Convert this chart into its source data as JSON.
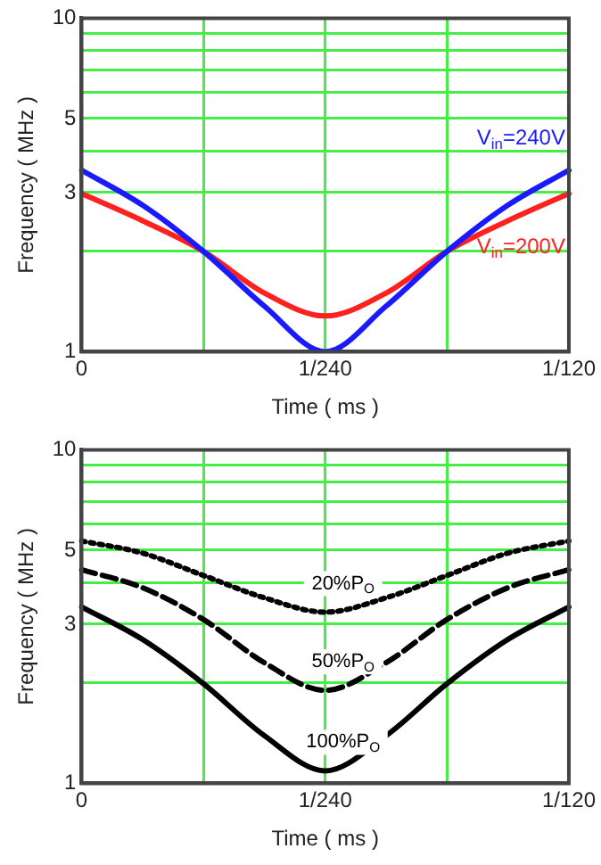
{
  "chart_data": [
    {
      "type": "line",
      "xlabel": "Time ( ms )",
      "ylabel": "Frequency ( MHz )",
      "log": "y",
      "grid": true,
      "legend": false,
      "categories": [
        "0",
        null,
        null,
        null,
        "1/240",
        null,
        null,
        null,
        "1/120"
      ],
      "ylim": [
        1,
        10
      ],
      "yticks": [
        1,
        {
          "value": 2,
          "label": null
        },
        3,
        {
          "value": 4,
          "label": null
        },
        5,
        {
          "value": 6,
          "label": null
        },
        {
          "value": 7,
          "label": null
        },
        {
          "value": 8,
          "label": null
        },
        {
          "value": 9,
          "label": null
        },
        10
      ],
      "series": [
        {
          "name": "V$_{in}$=240V",
          "color": "#1a1aff",
          "values": [
            3.5,
            2.75,
            2.0,
            1.37,
            1.0,
            1.37,
            2.0,
            2.75,
            3.5
          ]
        },
        {
          "name": "V$_{in}$=200V",
          "color": "#ff2020",
          "values": [
            2.98,
            2.47,
            2.0,
            1.5,
            1.28,
            1.5,
            2.0,
            2.47,
            2.98
          ]
        }
      ]
    },
    {
      "type": "line",
      "xlabel": "Time ( ms )",
      "ylabel": "Frequency ( MHz )",
      "log": "y",
      "grid": true,
      "legend": false,
      "categories": [
        "0",
        null,
        null,
        null,
        "1/240",
        null,
        null,
        null,
        "1/120"
      ],
      "ylim": [
        1,
        10
      ],
      "yticks": [
        1,
        {
          "value": 2,
          "label": null
        },
        3,
        {
          "value": 4,
          "label": null
        },
        5,
        {
          "value": 6,
          "label": null
        },
        {
          "value": 7,
          "label": null
        },
        {
          "value": 8,
          "label": null
        },
        {
          "value": 9,
          "label": null
        },
        10
      ],
      "series": [
        {
          "name": "20%P$_{O}$",
          "color": "#000000",
          "line_style": "dotted",
          "values": [
            5.33,
            4.9,
            4.2,
            3.6,
            3.26,
            3.6,
            4.2,
            4.9,
            5.33
          ]
        },
        {
          "name": "50%P$_{O}$",
          "color": "#000000",
          "line_style": "dashed",
          "values": [
            4.37,
            3.86,
            3.1,
            2.3,
            1.9,
            2.3,
            3.1,
            3.86,
            4.37
          ]
        },
        {
          "name": "100%P$_{O}$",
          "color": "#000000",
          "line_style": "solid",
          "values": [
            3.38,
            2.7,
            1.99,
            1.39,
            1.09,
            1.39,
            1.99,
            2.7,
            3.38
          ]
        }
      ]
    }
  ]
}
